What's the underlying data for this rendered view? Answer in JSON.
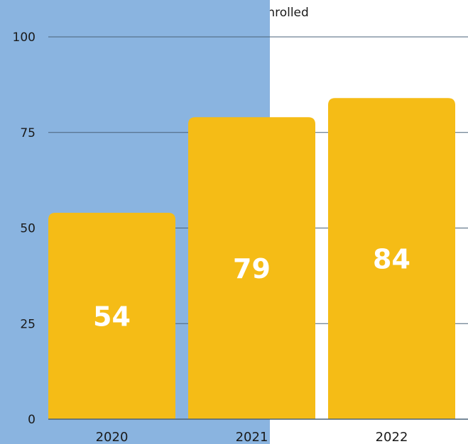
{
  "colors": {
    "panel": "#8ab4e0",
    "bar": "#f5bc16",
    "grid": "#4a6278",
    "axis_text": "#1a1a1a",
    "bar_label": "#ffffff"
  },
  "chart_data": {
    "type": "bar",
    "categories": [
      "2020",
      "2021",
      "2022"
    ],
    "series": [
      {
        "name": "# of Children Enrolled",
        "values": [
          54,
          79,
          84
        ]
      }
    ],
    "ylim": [
      0,
      100
    ],
    "yticks": [
      0,
      25,
      50,
      75,
      100
    ],
    "data_labels": [
      "54",
      "79",
      "84"
    ],
    "grid": true,
    "legend": "top-center",
    "title": "",
    "xlabel": "",
    "ylabel": ""
  }
}
